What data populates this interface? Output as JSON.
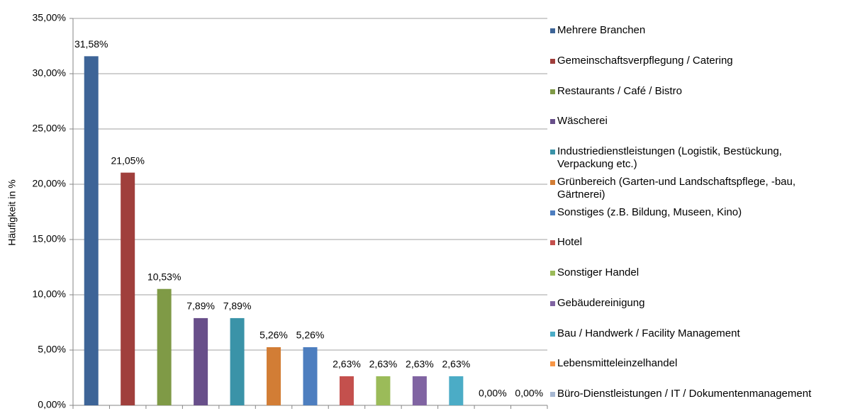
{
  "chart_data": {
    "type": "bar",
    "y_label": "Häufigkeit in %",
    "categories": [
      "Mehrere Branchen",
      "Gemeinschaftsverpflegung / Catering",
      "Restaurants / Café / Bistro",
      "Wäscherei",
      "Industriedienstleistungen (Logistik, Bestückung, Verpackung etc.)",
      "Grünbereich (Garten-und Landschaftspflege, -bau, Gärtnerei)",
      "Sonstiges (z.B. Bildung, Museen, Kino)",
      "Hotel",
      "Sonstiger Handel",
      "Gebäudereinigung",
      "Bau / Handwerk / Facility Management",
      "Lebensmitteleinzelhandel",
      "Büro-Dienstleistungen / IT / Dokumentenmanagement"
    ],
    "values": [
      31.58,
      21.05,
      10.53,
      7.89,
      7.89,
      5.26,
      5.26,
      2.63,
      2.63,
      2.63,
      2.63,
      0,
      0
    ],
    "value_labels": [
      "31,58%",
      "21,05%",
      "10,53%",
      "7,89%",
      "7,89%",
      "5,26%",
      "5,26%",
      "2,63%",
      "2,63%",
      "2,63%",
      "2,63%",
      "0,00%",
      "0,00%"
    ],
    "colors": [
      "#3d6497",
      "#a03f3c",
      "#7f9a46",
      "#684f8a",
      "#3a93a8",
      "#d27d35",
      "#4d7ebf",
      "#c4504d",
      "#9bbb59",
      "#8064a2",
      "#4bacc6",
      "#f79646",
      "#a6b7d1"
    ],
    "ylim": [
      0,
      35
    ],
    "yticks": [
      {
        "value": 0,
        "label": "0,00%"
      },
      {
        "value": 5,
        "label": "5,00%"
      },
      {
        "value": 10,
        "label": "10,00%"
      },
      {
        "value": 15,
        "label": "15,00%"
      },
      {
        "value": 20,
        "label": "20,00%"
      },
      {
        "value": 25,
        "label": "25,00%"
      },
      {
        "value": 30,
        "label": "30,00%"
      },
      {
        "value": 35,
        "label": "35,00%"
      }
    ],
    "grid": true,
    "legend": "right"
  }
}
